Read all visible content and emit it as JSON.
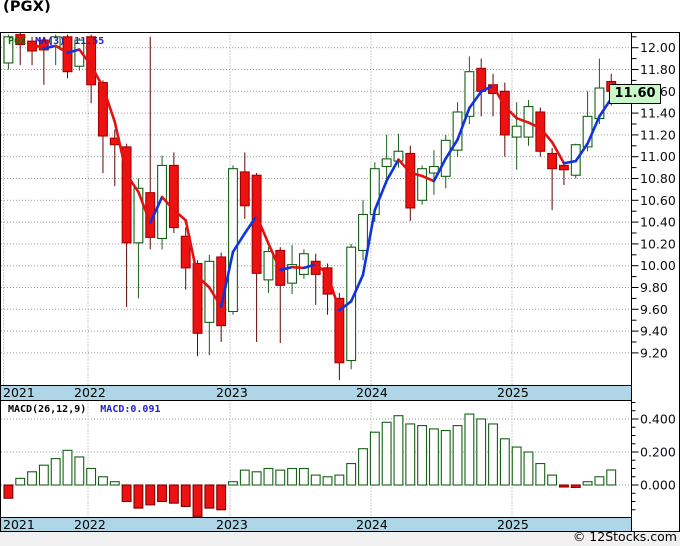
{
  "window": {
    "title": "(PGX)"
  },
  "price_pane": {
    "legend": {
      "symbol": "PGX",
      "ma_label": "MA(3)",
      "ma_value": "11.55"
    },
    "last_price_tag": {
      "text": "11.60"
    },
    "y_axis_labels": [
      "12.00",
      "11.80",
      "11.60",
      "11.40",
      "11.20",
      "11.00",
      "10.80",
      "10.60",
      "10.40",
      "10.20",
      "10.00",
      "9.80",
      "9.60",
      "9.40",
      "9.20"
    ]
  },
  "macd_pane": {
    "legend": {
      "indicator": "MACD(26,12,9)",
      "value_label": "MACD:0.091"
    },
    "y_axis_labels": [
      "0.400",
      "0.200",
      "0.000"
    ]
  },
  "x_axis": {
    "years": [
      "2021",
      "2022",
      "2023",
      "2024",
      "2025"
    ]
  },
  "footer": {
    "copyright": "© 12Stocks.com"
  },
  "colors": {
    "candle_up_stroke": "#156015",
    "candle_up_fill": "#ffffff",
    "candle_down_fill": "#ee1111",
    "candle_down_stroke": "#a50000",
    "wick_up": "#1b5e1b",
    "wick_down": "#5f0404",
    "ma_rising": "#1133dd",
    "ma_falling": "#e31212",
    "grid": "#999999",
    "band": "#aed6e6",
    "frame": "#000000",
    "tag_bg": "#c8f8c8",
    "legend_symbol": "#007700",
    "legend_blue": "#2222cc",
    "footer_bg": "#f0f0f0"
  },
  "chart_data": [
    {
      "type": "candlestick",
      "title": "PGX monthly candlesticks with MA(3) overlay",
      "x_months": [
        "2021-06",
        "2021-07",
        "2021-08",
        "2021-09",
        "2021-10",
        "2021-11",
        "2021-12",
        "2022-01",
        "2022-02",
        "2022-03",
        "2022-04",
        "2022-05",
        "2022-06",
        "2022-07",
        "2022-08",
        "2022-09",
        "2022-10",
        "2022-11",
        "2022-12",
        "2023-01",
        "2023-02",
        "2023-03",
        "2023-04",
        "2023-05",
        "2023-06",
        "2023-07",
        "2023-08",
        "2023-09",
        "2023-10",
        "2023-11",
        "2023-12",
        "2024-01",
        "2024-02",
        "2024-03",
        "2024-04",
        "2024-05",
        "2024-06",
        "2024-07",
        "2024-08",
        "2024-09",
        "2024-10",
        "2024-11",
        "2024-12",
        "2025-01",
        "2025-02",
        "2025-03",
        "2025-04",
        "2025-05",
        "2025-06",
        "2025-07",
        "2025-08",
        "2025-09"
      ],
      "x_year_gridlines": [
        "2022",
        "2023",
        "2024",
        "2025"
      ],
      "candles_ohlc": [
        [
          11.86,
          12.12,
          11.8,
          12.1
        ],
        [
          12.12,
          12.15,
          11.84,
          12.03
        ],
        [
          12.06,
          12.1,
          11.84,
          11.97
        ],
        [
          12.07,
          12.1,
          11.66,
          11.98
        ],
        [
          12.01,
          12.12,
          11.84,
          12.1
        ],
        [
          12.1,
          12.12,
          11.72,
          11.78
        ],
        [
          11.83,
          12.09,
          11.79,
          12.07
        ],
        [
          12.1,
          12.12,
          11.49,
          11.66
        ],
        [
          11.68,
          11.7,
          10.85,
          11.19
        ],
        [
          11.17,
          11.25,
          10.73,
          11.11
        ],
        [
          11.09,
          11.12,
          9.62,
          10.21
        ],
        [
          10.21,
          10.8,
          9.7,
          10.71
        ],
        [
          10.67,
          12.1,
          10.15,
          10.26
        ],
        [
          10.25,
          11.01,
          10.15,
          10.92
        ],
        [
          10.92,
          11.04,
          10.3,
          10.35
        ],
        [
          10.27,
          10.35,
          9.78,
          9.98
        ],
        [
          10.02,
          10.05,
          9.17,
          9.38
        ],
        [
          9.48,
          10.1,
          9.18,
          10.04
        ],
        [
          10.08,
          10.12,
          9.3,
          9.45
        ],
        [
          9.58,
          10.92,
          9.55,
          10.89
        ],
        [
          10.86,
          11.04,
          10.43,
          10.55
        ],
        [
          10.83,
          10.85,
          9.3,
          9.93
        ],
        [
          9.87,
          10.17,
          9.75,
          10.13
        ],
        [
          10.14,
          10.17,
          9.29,
          9.82
        ],
        [
          9.84,
          10.19,
          9.74,
          10.01
        ],
        [
          9.92,
          10.15,
          9.88,
          10.11
        ],
        [
          10.04,
          10.11,
          9.64,
          9.92
        ],
        [
          9.98,
          10.02,
          9.55,
          9.74
        ],
        [
          9.7,
          9.75,
          8.95,
          9.11
        ],
        [
          9.13,
          10.2,
          9.05,
          10.17
        ],
        [
          10.14,
          10.6,
          10.05,
          10.47
        ],
        [
          10.47,
          10.95,
          10.4,
          10.89
        ],
        [
          10.91,
          11.2,
          10.75,
          10.98
        ],
        [
          10.96,
          11.21,
          10.9,
          11.05
        ],
        [
          11.03,
          11.1,
          10.41,
          10.53
        ],
        [
          10.6,
          10.92,
          10.56,
          10.89
        ],
        [
          10.85,
          11.06,
          10.65,
          10.91
        ],
        [
          10.82,
          11.2,
          10.71,
          11.15
        ],
        [
          11.06,
          11.5,
          11.0,
          11.41
        ],
        [
          11.37,
          11.92,
          11.3,
          11.78
        ],
        [
          11.81,
          11.9,
          11.37,
          11.6
        ],
        [
          11.66,
          11.76,
          11.37,
          11.58
        ],
        [
          11.6,
          11.68,
          11.0,
          11.2
        ],
        [
          11.18,
          11.5,
          10.88,
          11.28
        ],
        [
          11.18,
          11.52,
          11.1,
          11.46
        ],
        [
          11.41,
          11.45,
          11.0,
          11.05
        ],
        [
          11.03,
          11.08,
          10.51,
          10.89
        ],
        [
          10.92,
          10.95,
          10.74,
          10.88
        ],
        [
          10.83,
          11.12,
          10.8,
          11.11
        ],
        [
          11.09,
          11.6,
          11.05,
          11.37
        ],
        [
          11.35,
          11.9,
          11.3,
          11.63
        ],
        [
          11.69,
          11.76,
          11.47,
          11.6
        ]
      ],
      "overlay": {
        "name": "MA(3)",
        "derivation": "3-month moving average of closes",
        "last_value": 11.55,
        "style": "blue segments when rising, red segments when falling"
      },
      "last_close": 11.6,
      "ylim": [
        8.9,
        12.14
      ],
      "y_ticks": [
        9.2,
        9.4,
        9.6,
        9.8,
        10.0,
        10.2,
        10.4,
        10.6,
        10.8,
        11.0,
        11.2,
        11.4,
        11.6,
        11.8,
        12.0
      ],
      "grid": "dotted"
    },
    {
      "type": "bar",
      "title": "MACD(26,12,9) histogram",
      "x_months": "same months as candlestick pane",
      "values": [
        -0.08,
        0.04,
        0.08,
        0.12,
        0.16,
        0.21,
        0.17,
        0.1,
        0.05,
        0.02,
        -0.1,
        -0.14,
        -0.12,
        -0.1,
        -0.11,
        -0.13,
        -0.19,
        -0.14,
        -0.15,
        0.02,
        0.09,
        0.08,
        0.1,
        0.09,
        0.1,
        0.1,
        0.06,
        0.05,
        0.06,
        0.13,
        0.22,
        0.32,
        0.38,
        0.42,
        0.37,
        0.36,
        0.34,
        0.33,
        0.36,
        0.43,
        0.4,
        0.37,
        0.28,
        0.23,
        0.2,
        0.13,
        0.06,
        -0.012,
        -0.015,
        0.02,
        0.05,
        0.091
      ],
      "last_value": 0.091,
      "ylim": [
        -0.28,
        0.52
      ],
      "y_ticks": [
        0.0,
        0.2,
        0.4
      ],
      "bar_style": "hollow green above zero, filled red below zero",
      "grid": "dotted"
    }
  ]
}
